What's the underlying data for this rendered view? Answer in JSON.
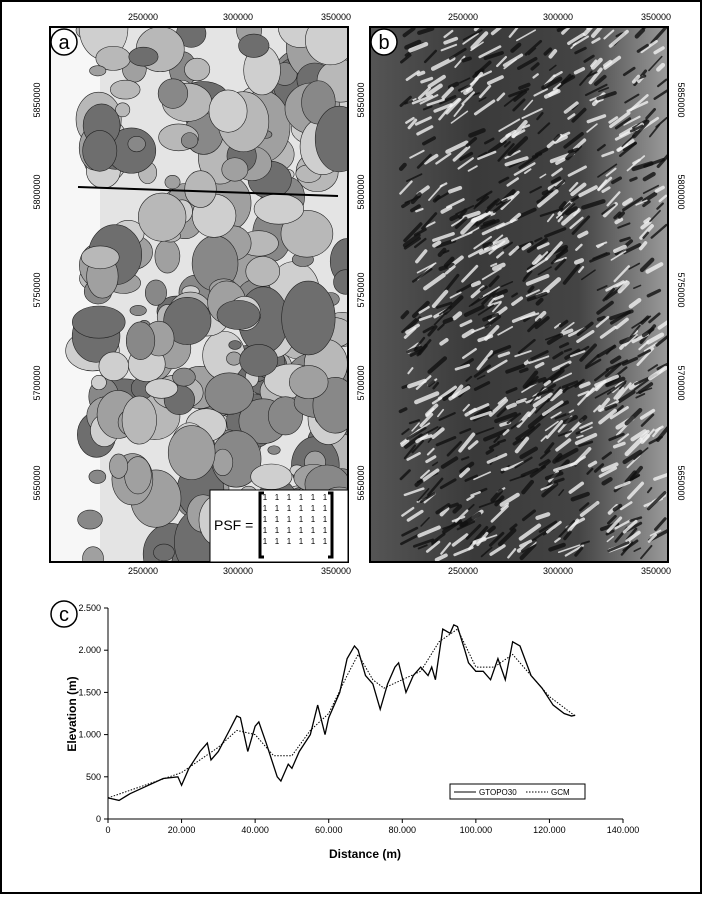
{
  "panels": {
    "a": {
      "label": "a",
      "x_ticks": [
        250000,
        300000,
        350000
      ],
      "y_ticks": [
        5850000,
        5800000,
        5750000,
        5700000,
        5650000
      ],
      "psf": {
        "label": "PSF =",
        "matrix": [
          [
            1,
            1,
            1,
            1,
            1,
            1
          ],
          [
            1,
            1,
            1,
            1,
            1,
            1
          ],
          [
            1,
            1,
            1,
            1,
            1,
            1
          ],
          [
            1,
            1,
            1,
            1,
            1,
            1
          ],
          [
            1,
            1,
            1,
            1,
            1,
            1
          ]
        ]
      }
    },
    "b": {
      "label": "b",
      "x_ticks": [
        250000,
        300000,
        350000
      ],
      "y_ticks": [
        5850000,
        5800000,
        5750000,
        5700000,
        5650000
      ]
    }
  },
  "chart_data": {
    "type": "line",
    "label": "c",
    "xlabel": "Distance (m)",
    "ylabel": "Elevation (m)",
    "xlim": [
      0,
      140000
    ],
    "ylim": [
      0,
      2500
    ],
    "xticks": [
      0,
      {
        "value": 20000,
        "label": "20.000"
      },
      {
        "value": 40000,
        "label": "40.000"
      },
      {
        "value": 60000,
        "label": "60.000"
      },
      {
        "value": 80000,
        "label": "80.000"
      },
      {
        "value": 100000,
        "label": "100.000"
      },
      {
        "value": 120000,
        "label": "120.000"
      },
      {
        "value": 140000,
        "label": "140.000"
      }
    ],
    "yticks": [
      0,
      500,
      {
        "value": 1000,
        "label": "1.000"
      },
      {
        "value": 1500,
        "label": "1.500"
      },
      {
        "value": 2000,
        "label": "2.000"
      },
      {
        "value": 2500,
        "label": "2.500"
      }
    ],
    "legend": "lower right",
    "series": [
      {
        "name": "GTOPO30",
        "color": "#000000",
        "dash": "solid",
        "x": [
          0,
          3000,
          6000,
          10000,
          15000,
          19000,
          20000,
          22000,
          25000,
          27000,
          28000,
          30000,
          33000,
          35000,
          36000,
          38000,
          40000,
          41000,
          43000,
          46000,
          47000,
          49000,
          50000,
          52000,
          55000,
          57000,
          59000,
          60000,
          63000,
          65000,
          67000,
          68000,
          70000,
          72000,
          74000,
          76000,
          78000,
          79000,
          81000,
          83000,
          85000,
          87000,
          88000,
          89000,
          91000,
          93000,
          94000,
          95000,
          97000,
          98000,
          100000,
          102000,
          104000,
          106000,
          108000,
          110000,
          112000,
          115000,
          118000,
          121000,
          124000,
          126000,
          127000
        ],
        "values": [
          250,
          220,
          300,
          380,
          480,
          500,
          400,
          600,
          800,
          900,
          700,
          800,
          1050,
          1220,
          1200,
          800,
          1100,
          1150,
          900,
          500,
          450,
          650,
          600,
          800,
          1000,
          1350,
          1000,
          1200,
          1500,
          1900,
          2050,
          2000,
          1700,
          1600,
          1300,
          1600,
          1800,
          1850,
          1500,
          1700,
          1800,
          1700,
          1800,
          1650,
          2250,
          2200,
          2300,
          2280,
          2000,
          1850,
          1750,
          1750,
          1650,
          1900,
          1650,
          2100,
          2050,
          1700,
          1550,
          1350,
          1250,
          1220,
          1230
        ]
      },
      {
        "name": "GCM",
        "color": "#000000",
        "dash": "dotted",
        "x": [
          0,
          10000,
          20000,
          30000,
          35000,
          40000,
          45000,
          50000,
          55000,
          60000,
          65000,
          68000,
          72000,
          75000,
          80000,
          85000,
          90000,
          95000,
          100000,
          105000,
          110000,
          115000,
          120000,
          127000
        ],
        "values": [
          250,
          400,
          550,
          850,
          1050,
          1000,
          750,
          750,
          1050,
          1250,
          1700,
          1950,
          1650,
          1550,
          1650,
          1750,
          2100,
          2250,
          1800,
          1800,
          1950,
          1700,
          1450,
          1220
        ]
      }
    ]
  }
}
